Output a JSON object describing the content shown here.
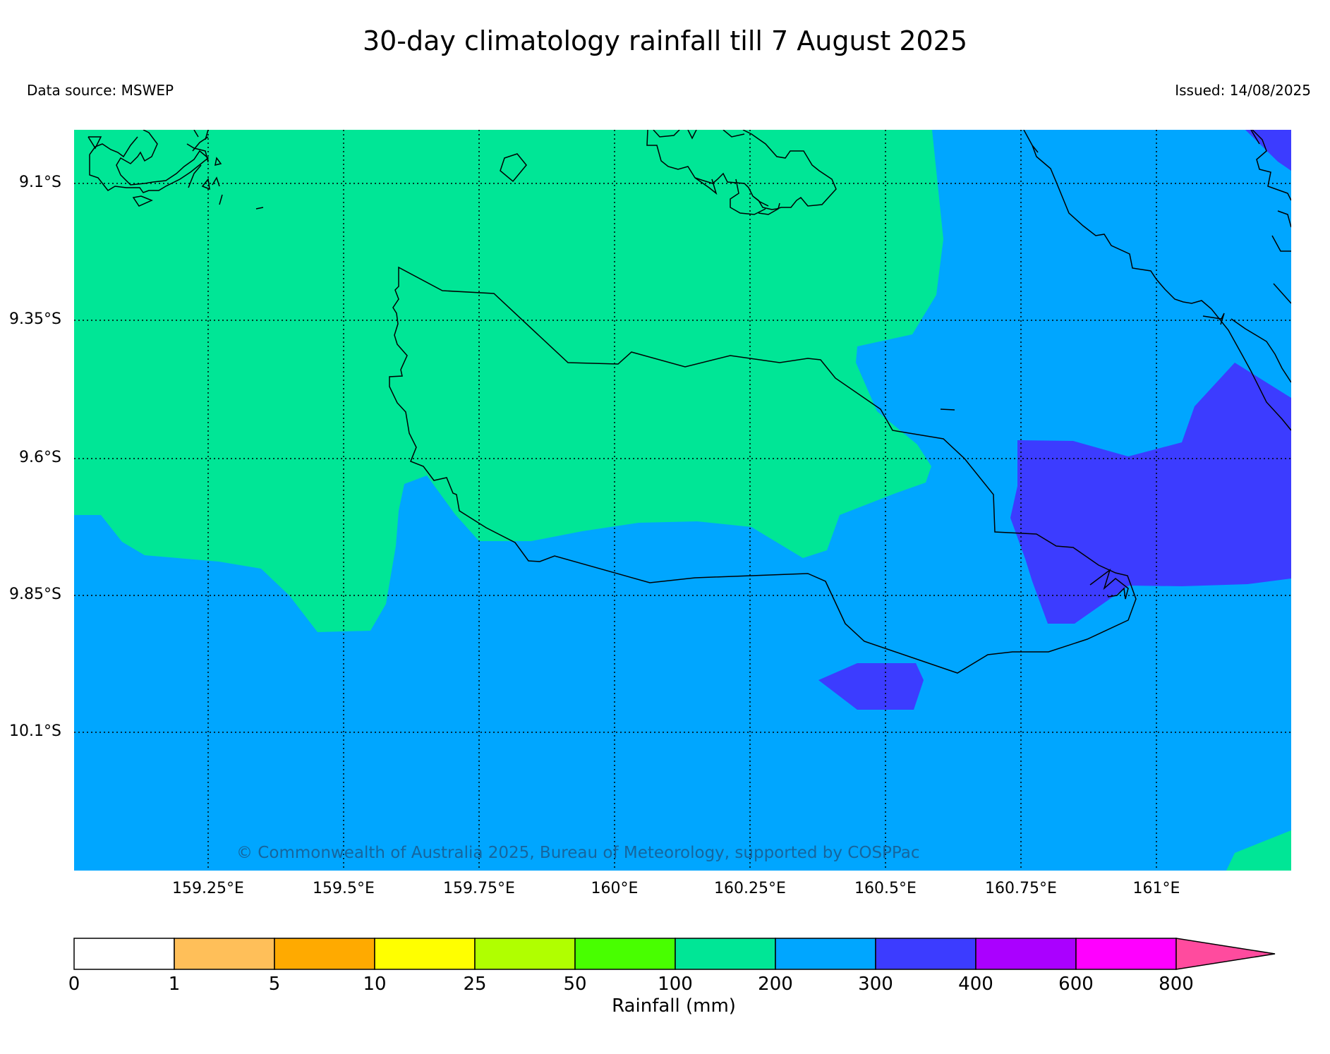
{
  "header": {
    "title": "30-day climatology rainfall till 7 August 2025",
    "source": "Data source: MSWEP",
    "issued": "Issued: 14/08/2025"
  },
  "map": {
    "lon_range": [
      159.0,
      161.25
    ],
    "lat_range": [
      -9.0,
      -10.4
    ],
    "lat_ticks": [
      "9.1°S",
      "9.35°S",
      "9.6°S",
      "9.85°S",
      "10.1°S"
    ],
    "lon_ticks": [
      "159.25°E",
      "159.5°E",
      "159.75°E",
      "160°E",
      "160.25°E",
      "160.5°E",
      "160.75°E",
      "161°E"
    ],
    "regions": [
      {
        "band": "200–300",
        "color": "#00a6ff",
        "area": "background, southern and eastern sea"
      },
      {
        "band": "100–200",
        "color": "#00e696",
        "area": "western and central island (Guadalcanal)"
      },
      {
        "band": "300–400",
        "color": "#3c3cff",
        "area": "south-east and small patch south"
      }
    ],
    "copyright": "© Commonwealth of Australia 2025, Bureau of Meteorology, supported by COSPPac"
  },
  "colorbar": {
    "label": "Rainfall (mm)",
    "ticks": [
      "0",
      "1",
      "5",
      "10",
      "25",
      "50",
      "100",
      "200",
      "300",
      "400",
      "600",
      "800"
    ],
    "colors": [
      "#ffffff",
      "#ffbf59",
      "#ffaa00",
      "#ffff00",
      "#b0ff00",
      "#48ff00",
      "#00e696",
      "#00a6ff",
      "#3c3cff",
      "#aa00ff",
      "#ff00ff",
      "#ff4b9e"
    ]
  }
}
